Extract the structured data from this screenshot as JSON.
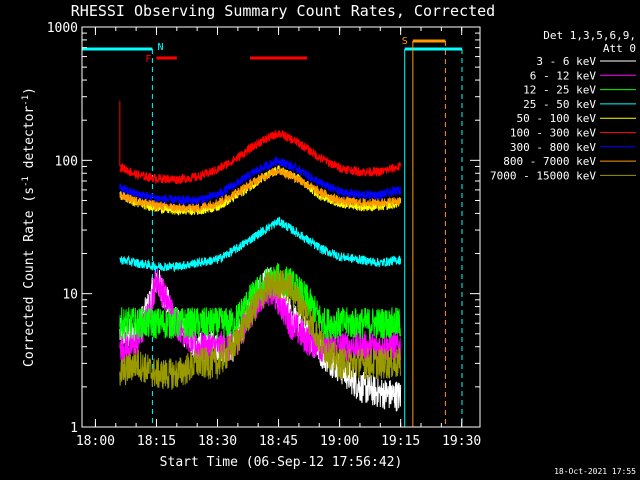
{
  "chart_data": {
    "type": "line",
    "title": "RHESSI Observing Summary Count Rates, Corrected",
    "xlabel": "Start Time (06-Sep-12 17:56:42)",
    "ylabel_main": "Corrected Count Rate (s",
    "ylabel_sup1": "-1",
    "ylabel_mid": " detector",
    "ylabel_sup2": "-1",
    "ylabel_end": ")",
    "yscale": "log",
    "xlim": [
      "17:56:42",
      "19:34:30"
    ],
    "ylim": [
      1,
      1000
    ],
    "xticks": [
      "18:00",
      "18:15",
      "18:30",
      "18:45",
      "19:00",
      "19:15",
      "19:30"
    ],
    "yticks": [
      "1",
      "10",
      "100",
      "1000"
    ],
    "legend_position": "right",
    "legend_header": [
      "Det 1,3,5,6,9,",
      "Att 0"
    ],
    "timestamp": "18-Oct-2021 17:55",
    "series": [
      {
        "name": "3 - 6 keV",
        "color": "#ffffff",
        "points": [
          [
            "18:06",
            5
          ],
          [
            "18:10",
            5
          ],
          [
            "18:13",
            8
          ],
          [
            "18:15",
            13
          ],
          [
            "18:20",
            6
          ],
          [
            "18:25",
            4
          ],
          [
            "18:30",
            4
          ],
          [
            "18:34",
            4
          ],
          [
            "18:38",
            8
          ],
          [
            "18:42",
            13
          ],
          [
            "18:45",
            10
          ],
          [
            "18:48",
            7
          ],
          [
            "18:52",
            5
          ],
          [
            "18:56",
            3.5
          ],
          [
            "19:00",
            2.8
          ],
          [
            "19:05",
            2
          ],
          [
            "19:10",
            1.8
          ],
          [
            "19:15",
            1.7
          ]
        ]
      },
      {
        "name": "6 - 12 keV",
        "color": "#ff00ff",
        "points": [
          [
            "18:06",
            4
          ],
          [
            "18:10",
            4
          ],
          [
            "18:13",
            7
          ],
          [
            "18:15",
            13
          ],
          [
            "18:20",
            6
          ],
          [
            "18:25",
            4
          ],
          [
            "18:30",
            4
          ],
          [
            "18:34",
            4
          ],
          [
            "18:38",
            7
          ],
          [
            "18:42",
            11
          ],
          [
            "18:45",
            9
          ],
          [
            "18:48",
            6
          ],
          [
            "18:52",
            4.5
          ],
          [
            "18:56",
            4
          ],
          [
            "19:00",
            4
          ],
          [
            "19:05",
            4
          ],
          [
            "19:10",
            4
          ],
          [
            "19:15",
            4
          ]
        ]
      },
      {
        "name": "12 - 25 keV",
        "color": "#00ff00",
        "points": [
          [
            "18:06",
            6
          ],
          [
            "18:10",
            6
          ],
          [
            "18:15",
            6
          ],
          [
            "18:20",
            6
          ],
          [
            "18:25",
            6
          ],
          [
            "18:30",
            6
          ],
          [
            "18:34",
            6
          ],
          [
            "18:38",
            9
          ],
          [
            "18:42",
            12
          ],
          [
            "18:45",
            13
          ],
          [
            "18:48",
            12
          ],
          [
            "18:52",
            9
          ],
          [
            "18:56",
            6
          ],
          [
            "19:00",
            6
          ],
          [
            "19:05",
            6
          ],
          [
            "19:10",
            6
          ],
          [
            "19:15",
            6
          ]
        ]
      },
      {
        "name": "25 - 50 keV",
        "color": "#00ffff",
        "points": [
          [
            "18:06",
            18
          ],
          [
            "18:10",
            17
          ],
          [
            "18:15",
            16
          ],
          [
            "18:20",
            16
          ],
          [
            "18:25",
            17
          ],
          [
            "18:30",
            18
          ],
          [
            "18:35",
            22
          ],
          [
            "18:40",
            28
          ],
          [
            "18:45",
            35
          ],
          [
            "18:50",
            28
          ],
          [
            "18:55",
            22
          ],
          [
            "19:00",
            19
          ],
          [
            "19:05",
            18
          ],
          [
            "19:10",
            17
          ],
          [
            "19:15",
            18
          ]
        ]
      },
      {
        "name": "50 - 100 keV",
        "color": "#ffff00",
        "points": [
          [
            "18:06",
            55
          ],
          [
            "18:10",
            48
          ],
          [
            "18:15",
            44
          ],
          [
            "18:20",
            42
          ],
          [
            "18:25",
            42
          ],
          [
            "18:30",
            45
          ],
          [
            "18:35",
            55
          ],
          [
            "18:40",
            70
          ],
          [
            "18:45",
            85
          ],
          [
            "18:50",
            72
          ],
          [
            "18:55",
            55
          ],
          [
            "19:00",
            48
          ],
          [
            "19:05",
            45
          ],
          [
            "19:10",
            45
          ],
          [
            "19:15",
            48
          ]
        ]
      },
      {
        "name": "100 - 300 keV",
        "color": "#ff0000",
        "points": [
          [
            "18:06",
            90
          ],
          [
            "18:10",
            78
          ],
          [
            "18:15",
            73
          ],
          [
            "18:20",
            72
          ],
          [
            "18:25",
            75
          ],
          [
            "18:30",
            85
          ],
          [
            "18:35",
            105
          ],
          [
            "18:40",
            135
          ],
          [
            "18:45",
            160
          ],
          [
            "18:50",
            135
          ],
          [
            "18:55",
            105
          ],
          [
            "19:00",
            88
          ],
          [
            "19:05",
            82
          ],
          [
            "19:10",
            82
          ],
          [
            "19:15",
            90
          ]
        ]
      },
      {
        "name": "300 - 800 keV",
        "color": "#0000ff",
        "points": [
          [
            "18:06",
            62
          ],
          [
            "18:10",
            56
          ],
          [
            "18:15",
            52
          ],
          [
            "18:20",
            50
          ],
          [
            "18:25",
            50
          ],
          [
            "18:30",
            55
          ],
          [
            "18:35",
            68
          ],
          [
            "18:40",
            85
          ],
          [
            "18:45",
            100
          ],
          [
            "18:50",
            85
          ],
          [
            "18:55",
            68
          ],
          [
            "19:00",
            58
          ],
          [
            "19:05",
            55
          ],
          [
            "19:10",
            55
          ],
          [
            "19:15",
            60
          ]
        ]
      },
      {
        "name": "800 - 7000 keV",
        "color": "#ff9900",
        "points": [
          [
            "18:06",
            55
          ],
          [
            "18:10",
            50
          ],
          [
            "18:15",
            46
          ],
          [
            "18:20",
            44
          ],
          [
            "18:25",
            44
          ],
          [
            "18:30",
            48
          ],
          [
            "18:35",
            58
          ],
          [
            "18:40",
            72
          ],
          [
            "18:45",
            85
          ],
          [
            "18:50",
            72
          ],
          [
            "18:55",
            58
          ],
          [
            "19:00",
            50
          ],
          [
            "19:05",
            48
          ],
          [
            "19:10",
            48
          ],
          [
            "19:15",
            50
          ]
        ]
      },
      {
        "name": "7000 - 15000 keV",
        "color": "#999900",
        "points": [
          [
            "18:06",
            2.5
          ],
          [
            "18:10",
            3
          ],
          [
            "18:15",
            2.5
          ],
          [
            "18:20",
            2.5
          ],
          [
            "18:25",
            3
          ],
          [
            "18:30",
            3
          ],
          [
            "18:34",
            4
          ],
          [
            "18:38",
            7
          ],
          [
            "18:42",
            11
          ],
          [
            "18:45",
            12
          ],
          [
            "18:48",
            11
          ],
          [
            "18:52",
            7
          ],
          [
            "18:56",
            4
          ],
          [
            "19:00",
            3
          ],
          [
            "19:05",
            3
          ],
          [
            "19:10",
            3
          ],
          [
            "19:15",
            3
          ]
        ]
      }
    ],
    "annotations": [
      {
        "label": "F",
        "color": "#ff0000"
      },
      {
        "label": "N",
        "color": "#00ffff"
      },
      {
        "label": "S",
        "color": "#ff9900"
      }
    ]
  }
}
